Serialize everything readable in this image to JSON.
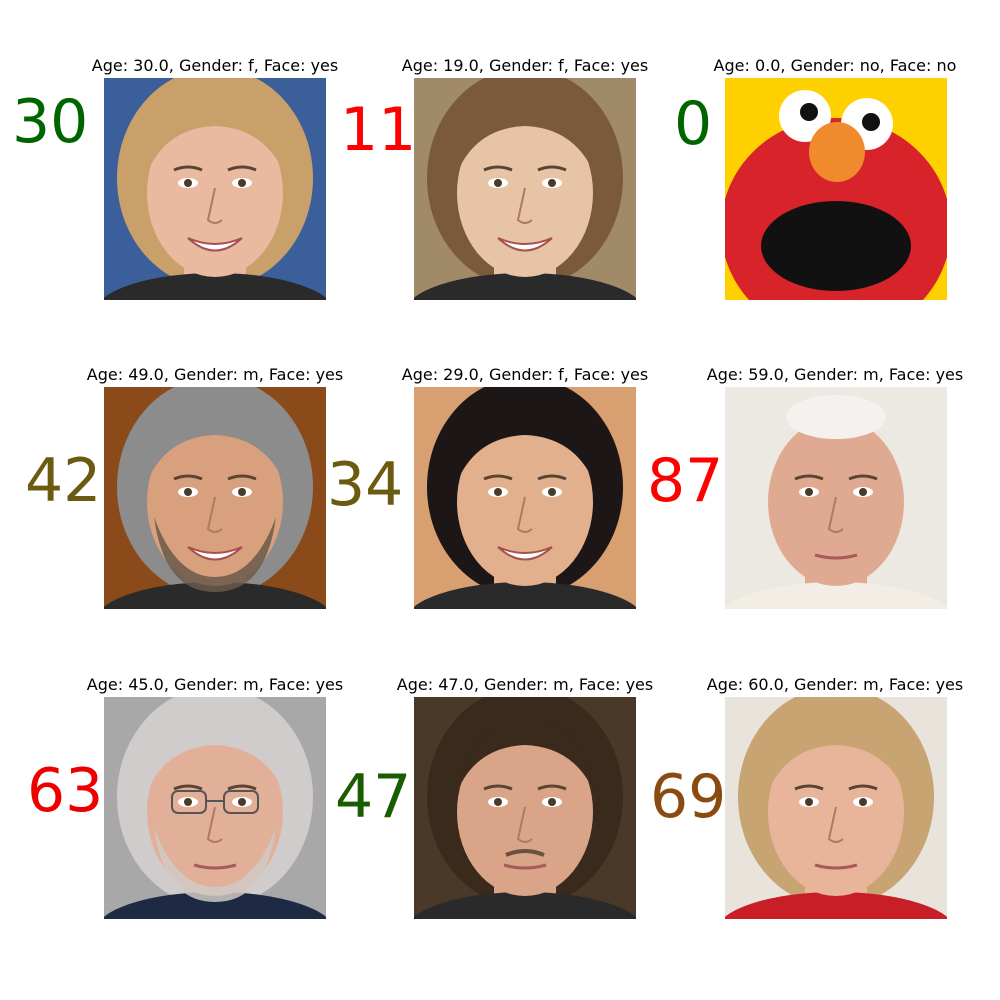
{
  "panels": [
    {
      "title": "Age: 30.0, Gender: f, Face: yes",
      "number": "30",
      "number_color": "#006400",
      "subject": "smiling blonde woman",
      "bg": "#3b5f9a",
      "skin": "#e9b9a0",
      "hair": "#c9a06a"
    },
    {
      "title": "Age: 19.0, Gender: f, Face: yes",
      "number": "11",
      "number_color": "#ff0000",
      "subject": "smiling girl",
      "bg": "#a08a68",
      "skin": "#e7c4a6",
      "hair": "#7a5a3a"
    },
    {
      "title": "Age: 0.0, Gender: no, Face: no",
      "number": "0",
      "number_color": "#006400",
      "subject": "red puppet",
      "bg": "#ffd000",
      "skin": "#d8232a",
      "hair": "#f08a2c"
    },
    {
      "title": "Age: 49.0, Gender: m, Face: yes",
      "number": "42",
      "number_color": "#6b5a10",
      "subject": "smiling man with grey hair",
      "bg": "#8a4a1a",
      "skin": "#d9a07e",
      "hair": "#8c8c8c"
    },
    {
      "title": "Age: 29.0, Gender: f, Face: yes",
      "number": "34",
      "number_color": "#6b5a10",
      "subject": "smiling woman with dark hair",
      "bg": "#d8a070",
      "skin": "#e2b08c",
      "hair": "#1c1616"
    },
    {
      "title": "Age: 59.0, Gender: m, Face: yes",
      "number": "87",
      "number_color": "#ff0000",
      "subject": "elderly man in white cap",
      "bg": "#ece8e2",
      "skin": "#e0aa92",
      "hair": "#f4f2ee"
    },
    {
      "title": "Age: 45.0, Gender: m, Face: yes",
      "number": "63",
      "number_color": "#ee0000",
      "subject": "man with glasses and beard",
      "bg": "#a8a8a8",
      "skin": "#e2b098",
      "hair": "#d0cccc"
    },
    {
      "title": "Age: 47.0, Gender: m, Face: yes",
      "number": "47",
      "number_color": "#1a5c00",
      "subject": "man with long hair",
      "bg": "#4a3828",
      "skin": "#d9a488",
      "hair": "#3a2a1c"
    },
    {
      "title": "Age: 60.0, Gender: m, Face: yes",
      "number": "69",
      "number_color": "#8b4a10",
      "subject": "elderly woman with blonde bob",
      "bg": "#e8e4dc",
      "skin": "#e8b49a",
      "hair": "#c8a472"
    }
  ]
}
